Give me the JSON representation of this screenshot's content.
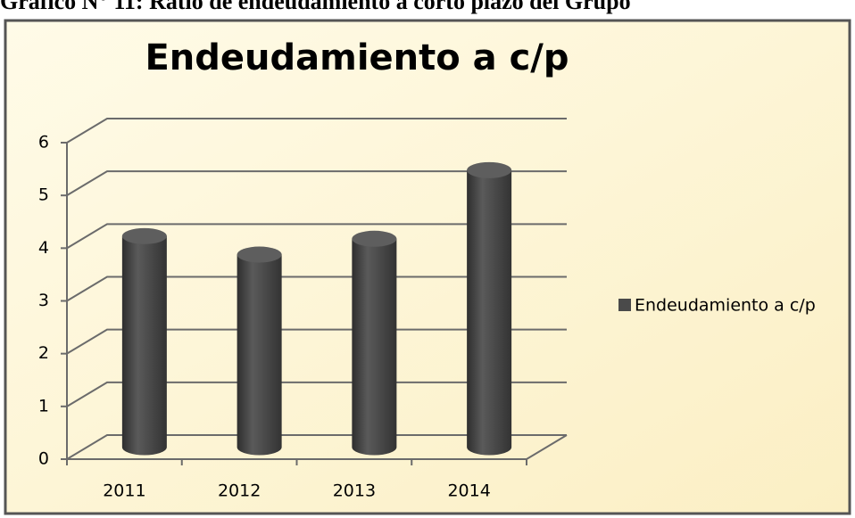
{
  "caption": "Gráfico N° 11: Ratio de endeudamiento a corto plazo del Grupo",
  "chart_data": {
    "type": "bar",
    "title": "Endeudamiento a c/p",
    "categories": [
      "2011",
      "2012",
      "2013",
      "2014"
    ],
    "series": [
      {
        "name": "Endeudamiento a c/p",
        "color": "#4a4a4a",
        "values": [
          4.0,
          3.65,
          3.95,
          5.25
        ]
      }
    ],
    "ylim": [
      0,
      6
    ],
    "yticks": [
      0,
      1,
      2,
      3,
      4,
      5,
      6
    ],
    "grid": true
  }
}
